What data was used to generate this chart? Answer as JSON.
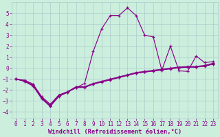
{
  "xlabel": "Windchill (Refroidissement éolien,°C)",
  "background_color": "#cceedd",
  "grid_color": "#aacccc",
  "line_color": "#880088",
  "x_ticks": [
    0,
    1,
    2,
    3,
    4,
    5,
    6,
    7,
    8,
    9,
    10,
    11,
    12,
    13,
    14,
    15,
    16,
    17,
    18,
    19,
    20,
    21,
    22,
    23
  ],
  "y_ticks": [
    -4,
    -3,
    -2,
    -1,
    0,
    1,
    2,
    3,
    4,
    5
  ],
  "ylim": [
    -4.6,
    6.0
  ],
  "xlim": [
    -0.5,
    23.5
  ],
  "curve_x": [
    0,
    1,
    2,
    3,
    4,
    5,
    6,
    7,
    8,
    9,
    10,
    11,
    12,
    13,
    14,
    15,
    16,
    17,
    18,
    19,
    20,
    21,
    22,
    23
  ],
  "curve_y": [
    -1.0,
    -1.2,
    -1.6,
    -2.8,
    -3.5,
    -2.6,
    -2.2,
    -1.8,
    -1.4,
    1.5,
    3.6,
    4.8,
    4.8,
    5.5,
    4.8,
    3.0,
    2.85,
    -0.2,
    2.0,
    -0.25,
    -0.3,
    1.1,
    0.5,
    0.6
  ],
  "line1_x": [
    0,
    1,
    2,
    3,
    4,
    5,
    6,
    7,
    8,
    9,
    10,
    11,
    12,
    13,
    14,
    15,
    16,
    17,
    18,
    19,
    20,
    21,
    22,
    23
  ],
  "line1_y": [
    -1.0,
    -1.15,
    -1.55,
    -2.7,
    -3.4,
    -2.5,
    -2.2,
    -1.75,
    -1.75,
    -1.45,
    -1.25,
    -1.05,
    -0.85,
    -0.65,
    -0.45,
    -0.35,
    -0.25,
    -0.15,
    -0.05,
    0.05,
    0.1,
    0.1,
    0.2,
    0.38
  ],
  "line2_x": [
    0,
    1,
    2,
    3,
    4,
    5,
    6,
    7,
    8,
    9,
    10,
    11,
    12,
    13,
    14,
    15,
    16,
    17,
    18,
    19,
    20,
    21,
    22,
    23
  ],
  "line2_y": [
    -1.0,
    -1.2,
    -1.65,
    -2.75,
    -3.45,
    -2.52,
    -2.22,
    -1.77,
    -1.77,
    -1.47,
    -1.27,
    -1.07,
    -0.87,
    -0.67,
    -0.47,
    -0.37,
    -0.27,
    -0.17,
    -0.07,
    0.03,
    0.08,
    0.08,
    0.18,
    0.36
  ],
  "line3_x": [
    0,
    1,
    2,
    3,
    4,
    5,
    6,
    7,
    8,
    9,
    10,
    11,
    12,
    13,
    14,
    15,
    16,
    17,
    18,
    19,
    20,
    21,
    22,
    23
  ],
  "line3_y": [
    -1.0,
    -1.1,
    -1.45,
    -2.6,
    -3.3,
    -2.45,
    -2.15,
    -1.7,
    -1.7,
    -1.4,
    -1.2,
    -1.0,
    -0.8,
    -0.6,
    -0.4,
    -0.3,
    -0.2,
    -0.1,
    -0.0,
    0.1,
    0.15,
    0.15,
    0.25,
    0.45
  ],
  "tick_font_size": 5.5,
  "label_font_size": 6.2
}
